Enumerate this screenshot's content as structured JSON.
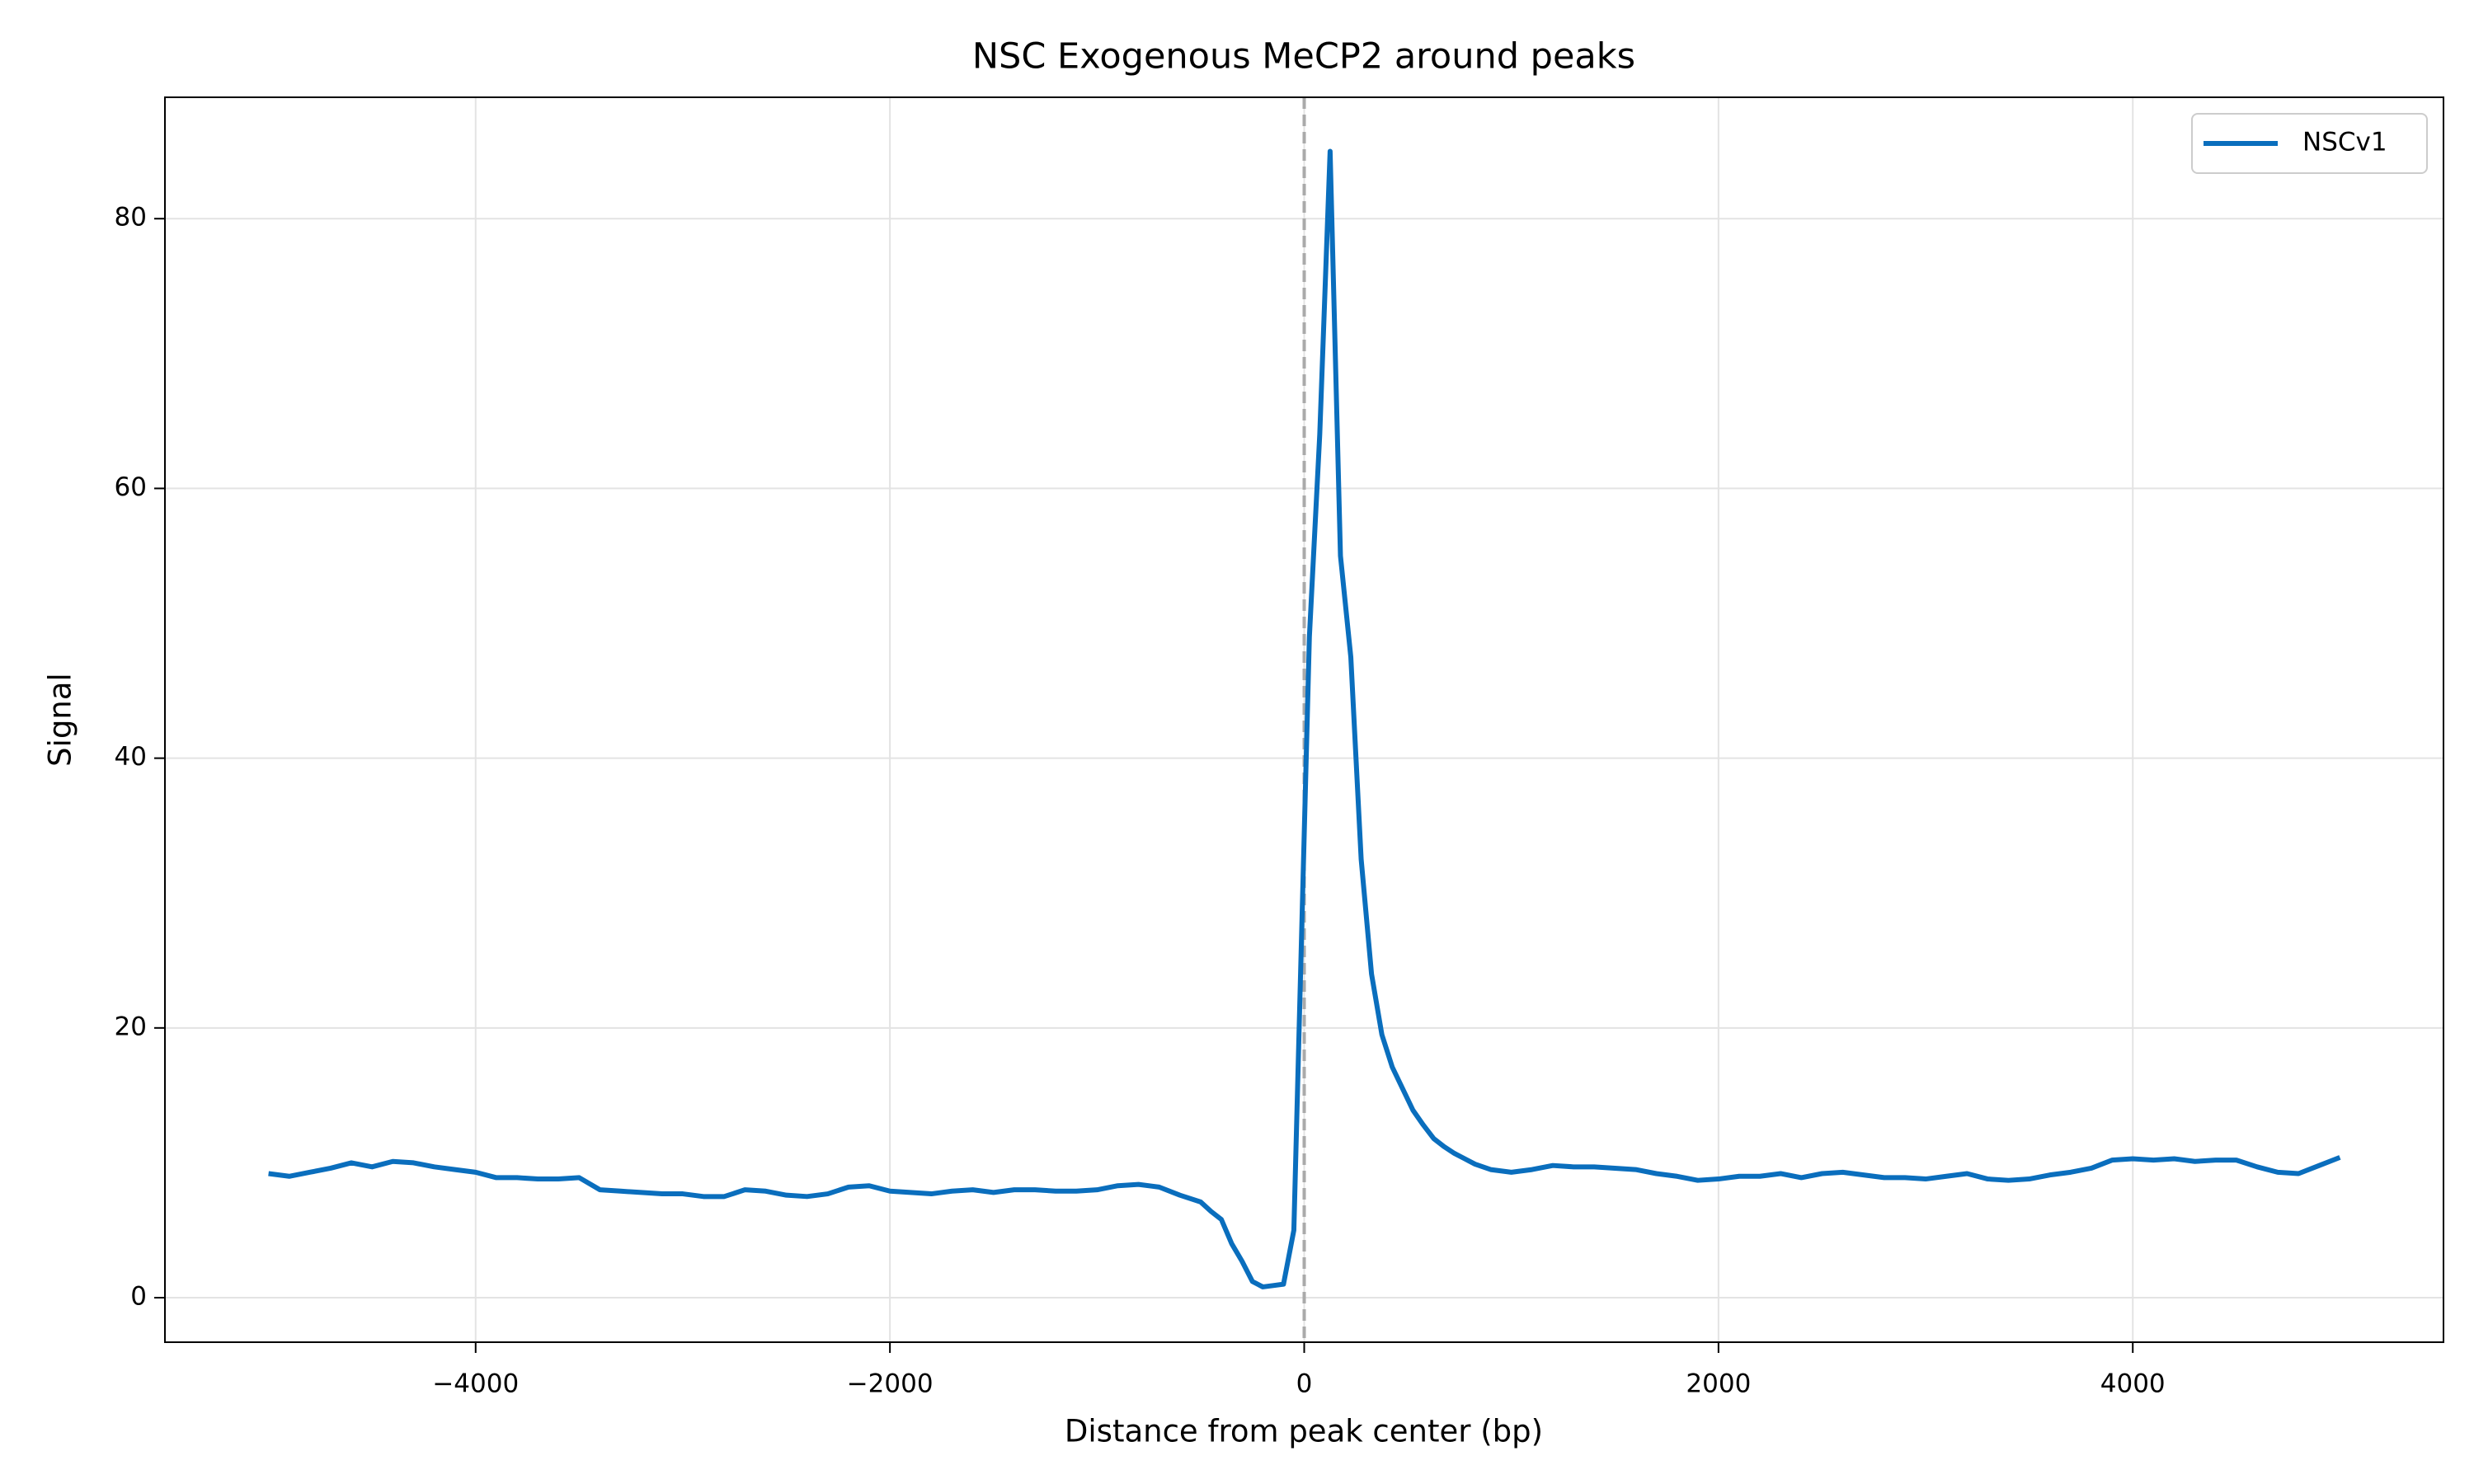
{
  "chart_data": {
    "type": "line",
    "title": "NSC Exogenous MeCP2 around peaks",
    "x_label": "Distance from peak center (bp)",
    "y_label": "Signal",
    "x": [
      -5000,
      -4900,
      -4800,
      -4700,
      -4600,
      -4500,
      -4400,
      -4300,
      -4200,
      -4100,
      -4000,
      -3900,
      -3800,
      -3700,
      -3600,
      -3500,
      -3400,
      -3300,
      -3200,
      -3100,
      -3000,
      -2900,
      -2800,
      -2700,
      -2600,
      -2500,
      -2400,
      -2300,
      -2200,
      -2100,
      -2000,
      -1900,
      -1800,
      -1700,
      -1600,
      -1500,
      -1400,
      -1300,
      -1200,
      -1100,
      -1000,
      -900,
      -800,
      -700,
      -600,
      -500,
      -450,
      -400,
      -350,
      -300,
      -250,
      -200,
      -150,
      -100,
      -50,
      25,
      75,
      125,
      175,
      225,
      275,
      325,
      375,
      425,
      475,
      525,
      575,
      625,
      675,
      725,
      775,
      825,
      900,
      1000,
      1100,
      1200,
      1300,
      1400,
      1500,
      1600,
      1700,
      1800,
      1900,
      2000,
      2100,
      2200,
      2300,
      2400,
      2500,
      2600,
      2700,
      2800,
      2900,
      3000,
      3100,
      3200,
      3300,
      3400,
      3500,
      3600,
      3700,
      3800,
      3900,
      4000,
      4100,
      4200,
      4300,
      4400,
      4500,
      4600,
      4700,
      4800,
      4900,
      5000
    ],
    "series": [
      {
        "name": "NSCv1",
        "color": "#0a6ebd",
        "values": [
          9.2,
          9.0,
          9.3,
          9.6,
          10.0,
          9.7,
          10.1,
          10.0,
          9.7,
          9.5,
          9.3,
          8.9,
          8.9,
          8.8,
          8.8,
          8.9,
          8.0,
          7.9,
          7.8,
          7.7,
          7.7,
          7.5,
          7.5,
          8.0,
          7.9,
          7.6,
          7.5,
          7.7,
          8.2,
          8.3,
          7.9,
          7.8,
          7.7,
          7.9,
          8.0,
          7.8,
          8.0,
          8.0,
          7.9,
          7.9,
          8.0,
          8.3,
          8.4,
          8.2,
          7.6,
          7.1,
          6.4,
          5.8,
          4.0,
          2.7,
          1.2,
          0.8,
          0.9,
          1.0,
          5.0,
          49,
          64,
          85,
          55,
          47.5,
          32.5,
          24,
          19.5,
          17.1,
          15.5,
          13.9,
          12.8,
          11.8,
          11.2,
          10.7,
          10.3,
          9.9,
          9.5,
          9.3,
          9.5,
          9.8,
          9.7,
          9.7,
          9.6,
          9.5,
          9.2,
          9.0,
          8.7,
          8.8,
          9.0,
          9.0,
          9.2,
          8.9,
          9.2,
          9.3,
          9.1,
          8.9,
          8.9,
          8.8,
          9.0,
          9.2,
          8.8,
          8.7,
          8.8,
          9.1,
          9.3,
          9.6,
          10.2,
          10.3,
          10.2,
          10.3,
          10.1,
          10.2,
          10.2,
          9.7,
          9.3,
          9.2,
          9.8,
          10.4
        ]
      }
    ],
    "vline": 0,
    "xlim": [
      -5500,
      5500
    ],
    "ylim": [
      -3.3,
      89.0
    ],
    "xticks": [
      {
        "value": -4000,
        "label": "−4000"
      },
      {
        "value": -2000,
        "label": "−2000"
      },
      0,
      2000,
      4000
    ],
    "yticks": [
      0,
      20,
      40,
      60,
      80
    ],
    "grid": true,
    "legend": "upper right"
  }
}
